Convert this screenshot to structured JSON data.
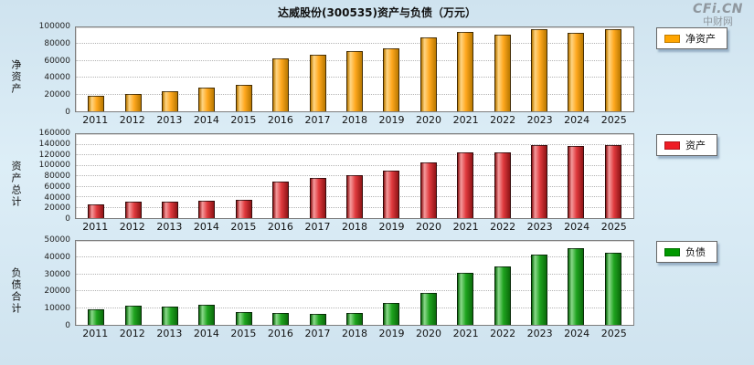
{
  "page": {
    "title": "达威股份(300535)资产与负债（万元）",
    "watermark_line1": "CFi.CN",
    "watermark_line2": "中财网"
  },
  "chart_data": [
    {
      "type": "bar",
      "ylabel": "净资产",
      "legend": "净资产",
      "color": "#FFA81E",
      "color_light": "#FFD583",
      "color_dark": "#B97800",
      "legend_color": "#FFA500",
      "categories": [
        "2011",
        "2012",
        "2013",
        "2014",
        "2015",
        "2016",
        "2017",
        "2018",
        "2019",
        "2020",
        "2021",
        "2022",
        "2023",
        "2024",
        "2025"
      ],
      "values": [
        19000,
        20500,
        24000,
        28000,
        31000,
        63000,
        67000,
        71500,
        75000,
        88000,
        95000,
        91000,
        98000,
        94000,
        98000
      ],
      "ylim": [
        0,
        100000
      ],
      "yticks": [
        0,
        20000,
        40000,
        60000,
        80000,
        100000
      ],
      "grid": true,
      "legend_position": "right"
    },
    {
      "type": "bar",
      "ylabel": "资产总计",
      "legend": "资产",
      "color": "#E03A3E",
      "color_light": "#F59A9C",
      "color_dark": "#8F1416",
      "legend_color": "#EE1C25",
      "categories": [
        "2011",
        "2012",
        "2013",
        "2014",
        "2015",
        "2016",
        "2017",
        "2018",
        "2019",
        "2020",
        "2021",
        "2022",
        "2023",
        "2024",
        "2025"
      ],
      "values": [
        26000,
        31000,
        32000,
        33500,
        34500,
        70000,
        77000,
        81000,
        91000,
        106000,
        125000,
        126000,
        140000,
        137000,
        140000
      ],
      "ylim": [
        0,
        160000
      ],
      "yticks": [
        0,
        20000,
        40000,
        60000,
        80000,
        100000,
        120000,
        140000,
        160000
      ],
      "grid": true,
      "legend_position": "right"
    },
    {
      "type": "bar",
      "ylabel": "负债合计",
      "legend": "负债",
      "color": "#1FA41F",
      "color_light": "#8BD98B",
      "color_dark": "#0B6B0B",
      "legend_color": "#009900",
      "categories": [
        "2011",
        "2012",
        "2013",
        "2014",
        "2015",
        "2016",
        "2017",
        "2018",
        "2019",
        "2020",
        "2021",
        "2022",
        "2023",
        "2024",
        "2025"
      ],
      "values": [
        9000,
        11500,
        11000,
        12000,
        7500,
        7000,
        6500,
        7000,
        13000,
        19000,
        31000,
        35000,
        42000,
        45500,
        43000
      ],
      "ylim": [
        0,
        50000
      ],
      "yticks": [
        0,
        10000,
        20000,
        30000,
        40000,
        50000
      ],
      "grid": true,
      "legend_position": "right"
    }
  ]
}
